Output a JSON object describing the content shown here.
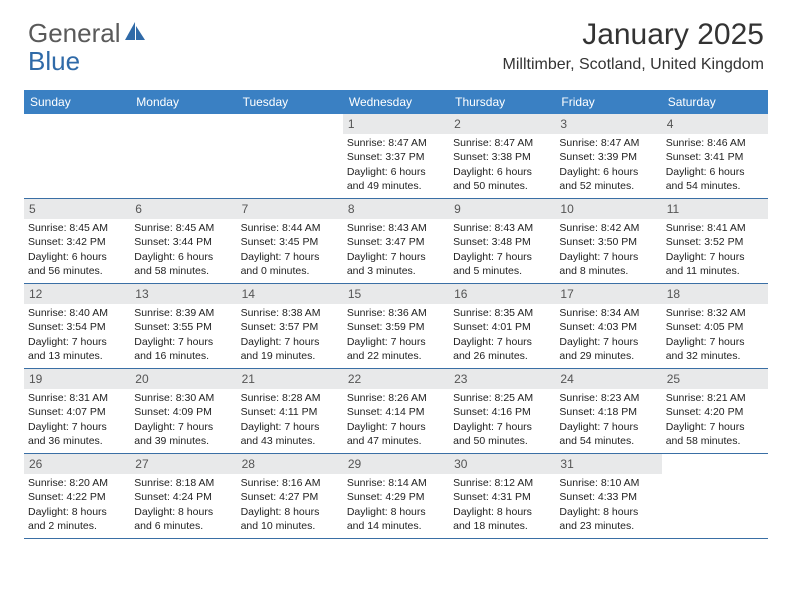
{
  "logo": {
    "text1": "General",
    "text2": "Blue",
    "color_general": "#5a5a5a",
    "color_blue": "#2f6aa8",
    "icon_color": "#2f6aa8"
  },
  "title": "January 2025",
  "location": "Milltimber, Scotland, United Kingdom",
  "header_bg": "#3a80c3",
  "weekdays": [
    "Sunday",
    "Monday",
    "Tuesday",
    "Wednesday",
    "Thursday",
    "Friday",
    "Saturday"
  ],
  "weeks": [
    [
      null,
      null,
      null,
      {
        "n": "1",
        "sr": "8:47 AM",
        "ss": "3:37 PM",
        "dl": "6 hours and 49 minutes."
      },
      {
        "n": "2",
        "sr": "8:47 AM",
        "ss": "3:38 PM",
        "dl": "6 hours and 50 minutes."
      },
      {
        "n": "3",
        "sr": "8:47 AM",
        "ss": "3:39 PM",
        "dl": "6 hours and 52 minutes."
      },
      {
        "n": "4",
        "sr": "8:46 AM",
        "ss": "3:41 PM",
        "dl": "6 hours and 54 minutes."
      }
    ],
    [
      {
        "n": "5",
        "sr": "8:45 AM",
        "ss": "3:42 PM",
        "dl": "6 hours and 56 minutes."
      },
      {
        "n": "6",
        "sr": "8:45 AM",
        "ss": "3:44 PM",
        "dl": "6 hours and 58 minutes."
      },
      {
        "n": "7",
        "sr": "8:44 AM",
        "ss": "3:45 PM",
        "dl": "7 hours and 0 minutes."
      },
      {
        "n": "8",
        "sr": "8:43 AM",
        "ss": "3:47 PM",
        "dl": "7 hours and 3 minutes."
      },
      {
        "n": "9",
        "sr": "8:43 AM",
        "ss": "3:48 PM",
        "dl": "7 hours and 5 minutes."
      },
      {
        "n": "10",
        "sr": "8:42 AM",
        "ss": "3:50 PM",
        "dl": "7 hours and 8 minutes."
      },
      {
        "n": "11",
        "sr": "8:41 AM",
        "ss": "3:52 PM",
        "dl": "7 hours and 11 minutes."
      }
    ],
    [
      {
        "n": "12",
        "sr": "8:40 AM",
        "ss": "3:54 PM",
        "dl": "7 hours and 13 minutes."
      },
      {
        "n": "13",
        "sr": "8:39 AM",
        "ss": "3:55 PM",
        "dl": "7 hours and 16 minutes."
      },
      {
        "n": "14",
        "sr": "8:38 AM",
        "ss": "3:57 PM",
        "dl": "7 hours and 19 minutes."
      },
      {
        "n": "15",
        "sr": "8:36 AM",
        "ss": "3:59 PM",
        "dl": "7 hours and 22 minutes."
      },
      {
        "n": "16",
        "sr": "8:35 AM",
        "ss": "4:01 PM",
        "dl": "7 hours and 26 minutes."
      },
      {
        "n": "17",
        "sr": "8:34 AM",
        "ss": "4:03 PM",
        "dl": "7 hours and 29 minutes."
      },
      {
        "n": "18",
        "sr": "8:32 AM",
        "ss": "4:05 PM",
        "dl": "7 hours and 32 minutes."
      }
    ],
    [
      {
        "n": "19",
        "sr": "8:31 AM",
        "ss": "4:07 PM",
        "dl": "7 hours and 36 minutes."
      },
      {
        "n": "20",
        "sr": "8:30 AM",
        "ss": "4:09 PM",
        "dl": "7 hours and 39 minutes."
      },
      {
        "n": "21",
        "sr": "8:28 AM",
        "ss": "4:11 PM",
        "dl": "7 hours and 43 minutes."
      },
      {
        "n": "22",
        "sr": "8:26 AM",
        "ss": "4:14 PM",
        "dl": "7 hours and 47 minutes."
      },
      {
        "n": "23",
        "sr": "8:25 AM",
        "ss": "4:16 PM",
        "dl": "7 hours and 50 minutes."
      },
      {
        "n": "24",
        "sr": "8:23 AM",
        "ss": "4:18 PM",
        "dl": "7 hours and 54 minutes."
      },
      {
        "n": "25",
        "sr": "8:21 AM",
        "ss": "4:20 PM",
        "dl": "7 hours and 58 minutes."
      }
    ],
    [
      {
        "n": "26",
        "sr": "8:20 AM",
        "ss": "4:22 PM",
        "dl": "8 hours and 2 minutes."
      },
      {
        "n": "27",
        "sr": "8:18 AM",
        "ss": "4:24 PM",
        "dl": "8 hours and 6 minutes."
      },
      {
        "n": "28",
        "sr": "8:16 AM",
        "ss": "4:27 PM",
        "dl": "8 hours and 10 minutes."
      },
      {
        "n": "29",
        "sr": "8:14 AM",
        "ss": "4:29 PM",
        "dl": "8 hours and 14 minutes."
      },
      {
        "n": "30",
        "sr": "8:12 AM",
        "ss": "4:31 PM",
        "dl": "8 hours and 18 minutes."
      },
      {
        "n": "31",
        "sr": "8:10 AM",
        "ss": "4:33 PM",
        "dl": "8 hours and 23 minutes."
      },
      null
    ]
  ],
  "labels": {
    "sunrise": "Sunrise: ",
    "sunset": "Sunset: ",
    "daylight": "Daylight: "
  }
}
